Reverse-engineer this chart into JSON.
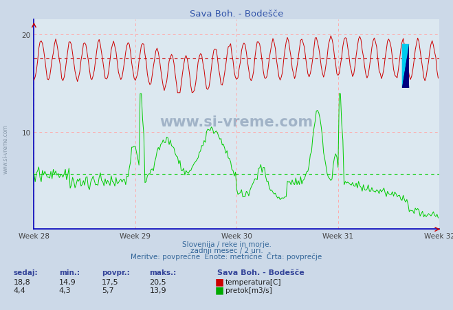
{
  "title": "Sava Boh. - Bodešče",
  "background_color": "#ccd9e8",
  "plot_background": "#dce8f0",
  "xlim": [
    0,
    336
  ],
  "ylim": [
    0,
    21
  ],
  "temp_avg": 17.5,
  "flow_avg": 5.7,
  "temp_color": "#cc0000",
  "flow_color": "#00cc00",
  "avg_temp_color": "#cc0000",
  "avg_flow_color": "#00cc00",
  "grid_h_color": "#ffaaaa",
  "grid_v_color": "#ffcccc",
  "week_labels": [
    "Week 28",
    "Week 29",
    "Week 30",
    "Week 31",
    "Week 32"
  ],
  "week_positions": [
    0,
    84,
    168,
    252,
    336
  ],
  "ytick_positions": [
    10,
    20
  ],
  "ytick_labels": [
    "10",
    "20"
  ],
  "subtitle1": "Slovenija / reke in morje.",
  "subtitle2": "zadnji mesec / 2 uri.",
  "subtitle3": "Meritve: povprečne  Enote: metrične  Črta: povprečje",
  "legend_title": "Sava Boh. - Bodešče",
  "stat_headers": [
    "sedaj:",
    "min.:",
    "povpr.:",
    "maks.:"
  ],
  "temp_stats": [
    "18,8",
    "14,9",
    "17,5",
    "20,5"
  ],
  "flow_stats": [
    "4,4",
    "4,3",
    "5,7",
    "13,9"
  ],
  "temp_label": "temperatura[C]",
  "flow_label": "pretok[m3/s]",
  "n_points": 336,
  "watermark": "www.si-vreme.com",
  "watermark_color": "#1a3a6a",
  "side_text": "www.si-vreme.com",
  "axis_color": "#0000cc",
  "text_color": "#336699"
}
